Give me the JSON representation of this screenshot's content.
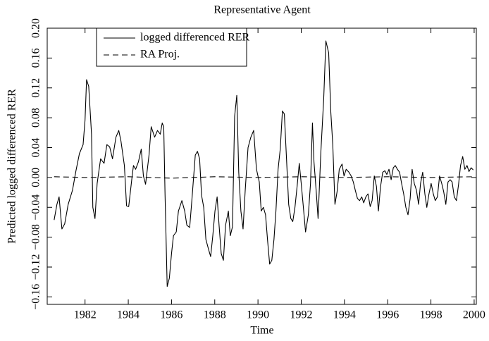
{
  "chart_data": {
    "type": "line",
    "title": "Representative Agent",
    "x_label": "Time",
    "y_label": "Predicted logged differenced RER",
    "xlim": [
      1980.25,
      2000.1
    ],
    "ylim": [
      -0.17,
      0.2
    ],
    "xticks": [
      1982,
      1984,
      1986,
      1988,
      1990,
      1992,
      1994,
      1996,
      1998,
      2000
    ],
    "yticks": [
      {
        "value": 0.2,
        "label": "0.20"
      },
      {
        "value": 0.16,
        "label": "0.16"
      },
      {
        "value": 0.12,
        "label": "0.12"
      },
      {
        "value": 0.08,
        "label": "0.08"
      },
      {
        "value": 0.04,
        "label": "0.04"
      },
      {
        "value": 0,
        "label": "0.00"
      },
      {
        "value": -0.04,
        "label": "−0.04"
      },
      {
        "value": -0.08,
        "label": "−0.08"
      },
      {
        "value": -0.12,
        "label": "−0.12"
      },
      {
        "value": -0.16,
        "label": "−0.16"
      }
    ],
    "legend": "upper left",
    "series": [
      {
        "name": "logged differenced RER",
        "color": "#000000",
        "style": "solid",
        "x": [
          1980.57,
          1980.7,
          1980.8,
          1980.93,
          1981.06,
          1981.22,
          1981.42,
          1981.58,
          1981.74,
          1981.91,
          1982.0,
          1982.07,
          1982.17,
          1982.3,
          1982.36,
          1982.46,
          1982.56,
          1982.72,
          1982.88,
          1983.01,
          1983.14,
          1983.27,
          1983.43,
          1983.56,
          1983.66,
          1983.82,
          1983.92,
          1984.02,
          1984.18,
          1984.24,
          1984.34,
          1984.47,
          1984.6,
          1984.7,
          1984.8,
          1984.96,
          1985.06,
          1985.22,
          1985.35,
          1985.48,
          1985.57,
          1985.64,
          1985.7,
          1985.8,
          1985.9,
          1986.0,
          1986.09,
          1986.22,
          1986.32,
          1986.48,
          1986.61,
          1986.71,
          1986.84,
          1986.94,
          1987.1,
          1987.2,
          1987.3,
          1987.39,
          1987.49,
          1987.59,
          1987.72,
          1987.81,
          1987.91,
          1988.01,
          1988.11,
          1988.2,
          1988.3,
          1988.4,
          1988.5,
          1988.63,
          1988.72,
          1988.82,
          1988.92,
          1989.02,
          1989.11,
          1989.21,
          1989.31,
          1989.41,
          1989.54,
          1989.67,
          1989.8,
          1989.93,
          1990.06,
          1990.15,
          1990.25,
          1990.35,
          1990.44,
          1990.54,
          1990.64,
          1990.74,
          1990.83,
          1990.93,
          1991.03,
          1991.13,
          1991.22,
          1991.32,
          1991.42,
          1991.52,
          1991.61,
          1991.71,
          1991.81,
          1991.91,
          1992.0,
          1992.1,
          1992.2,
          1992.33,
          1992.43,
          1992.52,
          1992.59,
          1992.69,
          1992.78,
          1992.91,
          1993.04,
          1993.14,
          1993.27,
          1993.37,
          1993.46,
          1993.56,
          1993.66,
          1993.76,
          1993.89,
          1993.98,
          1994.08,
          1994.21,
          1994.31,
          1994.41,
          1994.5,
          1994.6,
          1994.7,
          1994.8,
          1994.89,
          1994.99,
          1995.09,
          1995.19,
          1995.28,
          1995.38,
          1995.48,
          1995.57,
          1995.67,
          1995.77,
          1995.87,
          1995.96,
          1996.06,
          1996.16,
          1996.26,
          1996.35,
          1996.45,
          1996.55,
          1996.65,
          1996.74,
          1996.84,
          1996.94,
          1997.04,
          1997.13,
          1997.23,
          1997.33,
          1997.43,
          1997.52,
          1997.62,
          1997.72,
          1997.81,
          1997.91,
          1998.01,
          1998.11,
          1998.2,
          1998.3,
          1998.4,
          1998.5,
          1998.59,
          1998.69,
          1998.79,
          1998.89,
          1998.98,
          1999.08,
          1999.18,
          1999.28,
          1999.37,
          1999.47,
          1999.57,
          1999.67,
          1999.76,
          1999.86,
          1999.96
        ],
        "values": [
          -0.057,
          -0.036,
          -0.026,
          -0.069,
          -0.062,
          -0.036,
          -0.017,
          0.009,
          0.032,
          0.044,
          0.077,
          0.131,
          0.122,
          0.058,
          -0.04,
          -0.055,
          -0.008,
          0.025,
          0.019,
          0.044,
          0.041,
          0.025,
          0.054,
          0.063,
          0.049,
          0.016,
          -0.038,
          -0.039,
          0.002,
          0.016,
          0.011,
          0.021,
          0.038,
          0.002,
          -0.009,
          0.03,
          0.068,
          0.054,
          0.063,
          0.058,
          0.073,
          0.068,
          -0.022,
          -0.146,
          -0.135,
          -0.102,
          -0.078,
          -0.073,
          -0.045,
          -0.031,
          -0.045,
          -0.064,
          -0.067,
          -0.031,
          0.03,
          0.035,
          0.025,
          -0.024,
          -0.04,
          -0.083,
          -0.097,
          -0.106,
          -0.078,
          -0.045,
          -0.026,
          -0.064,
          -0.102,
          -0.111,
          -0.064,
          -0.045,
          -0.078,
          -0.066,
          0.082,
          0.11,
          0.007,
          -0.045,
          -0.069,
          -0.017,
          0.04,
          0.054,
          0.063,
          0.011,
          -0.006,
          -0.045,
          -0.04,
          -0.05,
          -0.083,
          -0.116,
          -0.111,
          -0.083,
          -0.045,
          0.011,
          0.038,
          0.089,
          0.085,
          0.025,
          -0.036,
          -0.055,
          -0.059,
          -0.04,
          -0.012,
          0.019,
          -0.008,
          -0.04,
          -0.073,
          -0.05,
          -0.008,
          0.073,
          0.021,
          -0.017,
          -0.055,
          0.035,
          0.105,
          0.183,
          0.167,
          0.087,
          0.044,
          -0.036,
          -0.019,
          0.011,
          0.018,
          0.002,
          0.011,
          0.007,
          0.002,
          -0.006,
          -0.017,
          -0.028,
          -0.031,
          -0.026,
          -0.034,
          -0.026,
          -0.022,
          -0.039,
          -0.031,
          0.002,
          -0.012,
          -0.045,
          -0.012,
          0.007,
          0.009,
          0.004,
          0.011,
          -0.003,
          0.013,
          0.016,
          0.011,
          0.007,
          -0.009,
          -0.022,
          -0.04,
          -0.05,
          -0.028,
          0.011,
          -0.008,
          -0.017,
          -0.036,
          -0.008,
          0.007,
          -0.022,
          -0.04,
          -0.022,
          -0.008,
          -0.022,
          -0.031,
          -0.026,
          0.002,
          -0.008,
          -0.019,
          -0.036,
          -0.006,
          -0.003,
          -0.006,
          -0.026,
          -0.031,
          -0.009,
          0.016,
          0.028,
          0.011,
          0.016,
          0.008,
          0.013,
          0.01
        ]
      },
      {
        "name": "RA Proj.",
        "color": "#000000",
        "style": "dashed",
        "x": [
          1980.57,
          1982,
          1984,
          1986,
          1988,
          1990,
          1992,
          1994,
          1996,
          1998,
          1999.96
        ],
        "values": [
          0.001,
          0.0,
          0.001,
          -0.001,
          0.001,
          0.0,
          0.001,
          0.0,
          0.001,
          0.0,
          0.001
        ]
      }
    ]
  }
}
